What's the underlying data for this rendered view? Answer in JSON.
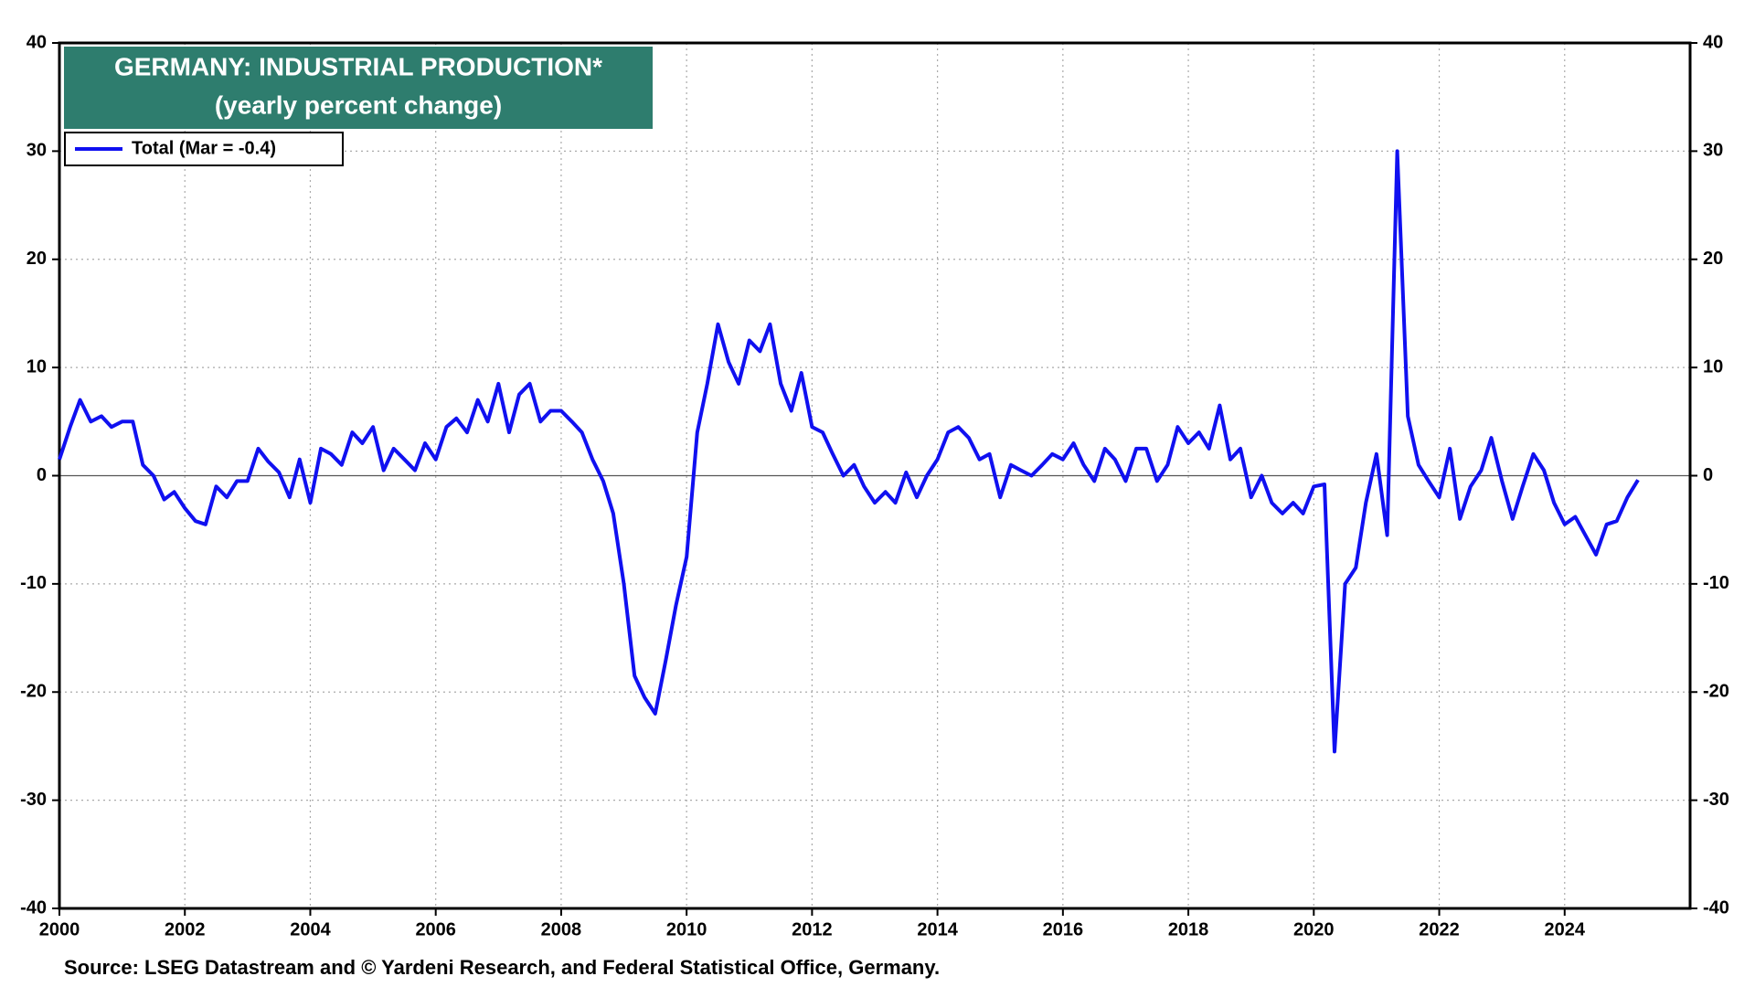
{
  "chart_data": {
    "type": "line",
    "title": "GERMANY: INDUSTRIAL PRODUCTION*",
    "subtitle": "(yearly percent change)",
    "source": "Source: LSEG Datastream and © Yardeni Research, and Federal Statistical Office, Germany.",
    "xlim": [
      2000,
      2026
    ],
    "xticks": [
      2000,
      2002,
      2004,
      2006,
      2008,
      2010,
      2012,
      2014,
      2016,
      2018,
      2020,
      2022,
      2024
    ],
    "ylim": [
      -40,
      40
    ],
    "yticks": [
      -40,
      -30,
      -20,
      -10,
      0,
      10,
      20,
      30,
      40
    ],
    "grid": true,
    "legend": "upper left",
    "x": [
      2000,
      2000.17,
      2000.33,
      2000.5,
      2000.67,
      2000.83,
      2001,
      2001.17,
      2001.33,
      2001.5,
      2001.67,
      2001.83,
      2002,
      2002.17,
      2002.33,
      2002.5,
      2002.67,
      2002.83,
      2003,
      2003.17,
      2003.33,
      2003.5,
      2003.67,
      2003.83,
      2004,
      2004.17,
      2004.33,
      2004.5,
      2004.67,
      2004.83,
      2005,
      2005.17,
      2005.33,
      2005.5,
      2005.67,
      2005.83,
      2006,
      2006.17,
      2006.33,
      2006.5,
      2006.67,
      2006.83,
      2007,
      2007.17,
      2007.33,
      2007.5,
      2007.67,
      2007.83,
      2008,
      2008.17,
      2008.33,
      2008.5,
      2008.67,
      2008.83,
      2009,
      2009.17,
      2009.33,
      2009.5,
      2009.67,
      2009.83,
      2010,
      2010.17,
      2010.33,
      2010.5,
      2010.67,
      2010.83,
      2011,
      2011.17,
      2011.33,
      2011.5,
      2011.67,
      2011.83,
      2012,
      2012.17,
      2012.33,
      2012.5,
      2012.67,
      2012.83,
      2013,
      2013.17,
      2013.33,
      2013.5,
      2013.67,
      2013.83,
      2014,
      2014.17,
      2014.33,
      2014.5,
      2014.67,
      2014.83,
      2015,
      2015.17,
      2015.33,
      2015.5,
      2015.67,
      2015.83,
      2016,
      2016.17,
      2016.33,
      2016.5,
      2016.67,
      2016.83,
      2017,
      2017.17,
      2017.33,
      2017.5,
      2017.67,
      2017.83,
      2018,
      2018.17,
      2018.33,
      2018.5,
      2018.67,
      2018.83,
      2019,
      2019.17,
      2019.33,
      2019.5,
      2019.67,
      2019.83,
      2020,
      2020.17,
      2020.33,
      2020.5,
      2020.67,
      2020.83,
      2021,
      2021.17,
      2021.33,
      2021.5,
      2021.67,
      2021.83,
      2022,
      2022.17,
      2022.33,
      2022.5,
      2022.67,
      2022.83,
      2023,
      2023.17,
      2023.33,
      2023.5,
      2023.67,
      2023.83,
      2024,
      2024.17,
      2024.33,
      2024.5,
      2024.67,
      2024.83,
      2025,
      2025.17
    ],
    "series": [
      {
        "name": "Total (Mar = -0.4)",
        "color": "#1010f0",
        "values": [
          1.5,
          4.5,
          7,
          5,
          5.5,
          4.5,
          5,
          5,
          1,
          0,
          -2.2,
          -1.5,
          -3,
          -4.2,
          -4.5,
          -1,
          -2,
          -0.5,
          -0.5,
          2.5,
          1.3,
          0.3,
          -2,
          1.5,
          -2.5,
          2.5,
          2,
          1,
          4,
          3,
          4.5,
          0.5,
          2.5,
          1.5,
          0.5,
          3,
          1.5,
          4.5,
          5.3,
          4,
          7,
          5,
          8.5,
          4,
          7.5,
          8.5,
          5,
          6,
          6,
          5,
          4,
          1.5,
          -0.5,
          -3.5,
          -10,
          -18.5,
          -20.5,
          -22,
          -17,
          -12,
          -7.5,
          4,
          8.5,
          14,
          10.5,
          8.5,
          12.5,
          11.5,
          14,
          8.5,
          6,
          9.5,
          4.5,
          4,
          2,
          0,
          1,
          -1,
          -2.5,
          -1.5,
          -2.5,
          0.3,
          -2,
          0,
          1.5,
          4,
          4.5,
          3.5,
          1.5,
          2,
          -2,
          1,
          0.5,
          0,
          1,
          2,
          1.5,
          3,
          1,
          -0.5,
          2.5,
          1.5,
          -0.5,
          2.5,
          2.5,
          -0.5,
          1,
          4.5,
          3,
          4,
          2.5,
          6.5,
          1.5,
          2.5,
          -2,
          0,
          -2.5,
          -3.5,
          -2.5,
          -3.5,
          -1,
          -0.8,
          -25.5,
          -10,
          -8.5,
          -2.5,
          2,
          -5.5,
          30,
          5.5,
          1,
          -0.5,
          -2,
          2.5,
          -4,
          -1,
          0.5,
          3.5,
          -0.5,
          -4,
          -1,
          2,
          0.5,
          -2.5,
          -4.5,
          -3.8,
          -5.5,
          -7.3,
          -4.5,
          -4.2,
          -2,
          -0.4
        ]
      }
    ]
  }
}
